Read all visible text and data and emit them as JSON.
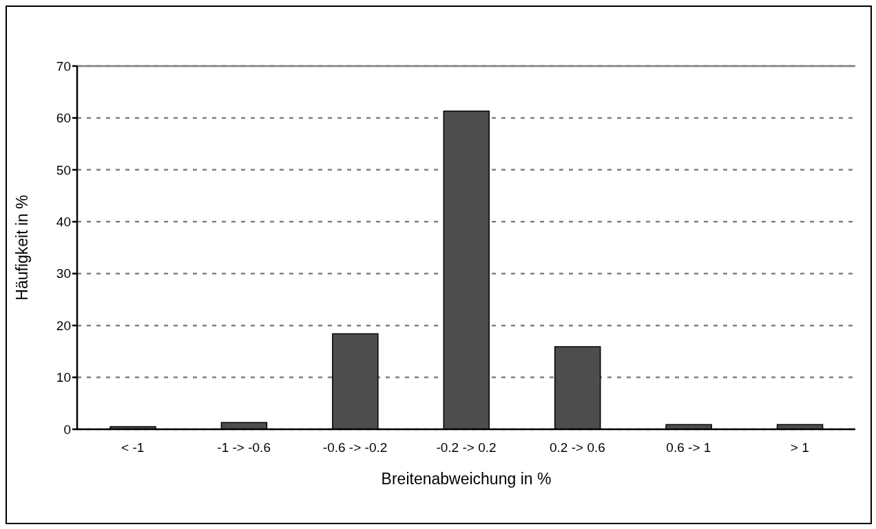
{
  "chart_data": {
    "type": "bar",
    "xlabel": "Breitenabweichung in %",
    "ylabel": "Häufigkeit in %",
    "categories": [
      "< -1",
      "-1 -> -0.6",
      "-0.6 -> -0.2",
      "-0.2 -> 0.2",
      "0.2 -> 0.6",
      "0.6 -> 1",
      "> 1"
    ],
    "values": [
      0.5,
      1.3,
      18.4,
      61.3,
      15.9,
      0.9,
      0.9
    ],
    "color": "#4d4d4d",
    "ylim": [
      0,
      70
    ],
    "yticks": [
      0,
      10,
      20,
      30,
      40,
      50,
      60,
      70
    ],
    "grid": "y"
  }
}
